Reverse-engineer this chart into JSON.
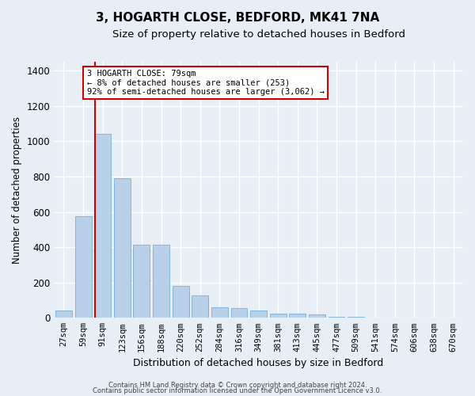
{
  "title": "3, HOGARTH CLOSE, BEDFORD, MK41 7NA",
  "subtitle": "Size of property relative to detached houses in Bedford",
  "xlabel": "Distribution of detached houses by size in Bedford",
  "ylabel": "Number of detached properties",
  "categories": [
    "27sqm",
    "59sqm",
    "91sqm",
    "123sqm",
    "156sqm",
    "188sqm",
    "220sqm",
    "252sqm",
    "284sqm",
    "316sqm",
    "349sqm",
    "381sqm",
    "413sqm",
    "445sqm",
    "477sqm",
    "509sqm",
    "541sqm",
    "574sqm",
    "606sqm",
    "638sqm",
    "670sqm"
  ],
  "values": [
    40,
    575,
    1040,
    790,
    415,
    415,
    180,
    125,
    60,
    55,
    42,
    25,
    22,
    20,
    8,
    5,
    2,
    1,
    0,
    0,
    0
  ],
  "bar_color": "#b8d0e8",
  "bar_edge_color": "#7aaed6",
  "vline_color": "#cc0000",
  "annotation_text": "3 HOGARTH CLOSE: 79sqm\n← 8% of detached houses are smaller (253)\n92% of semi-detached houses are larger (3,062) →",
  "annotation_box_color": "#ffffff",
  "annotation_box_edge_color": "#cc0000",
  "ylim": [
    0,
    1450
  ],
  "yticks": [
    0,
    200,
    400,
    600,
    800,
    1000,
    1200,
    1400
  ],
  "footer1": "Contains HM Land Registry data © Crown copyright and database right 2024.",
  "footer2": "Contains public sector information licensed under the Open Government Licence v3.0.",
  "background_color": "#e8eef5",
  "plot_background_color": "#e8eef5",
  "grid_color": "#ffffff",
  "title_fontsize": 11,
  "subtitle_fontsize": 9.5,
  "tick_fontsize": 7.5,
  "ylabel_fontsize": 8.5,
  "xlabel_fontsize": 9,
  "footer_fontsize": 6,
  "annotation_fontsize": 7.5,
  "vline_x_index": 1.62
}
